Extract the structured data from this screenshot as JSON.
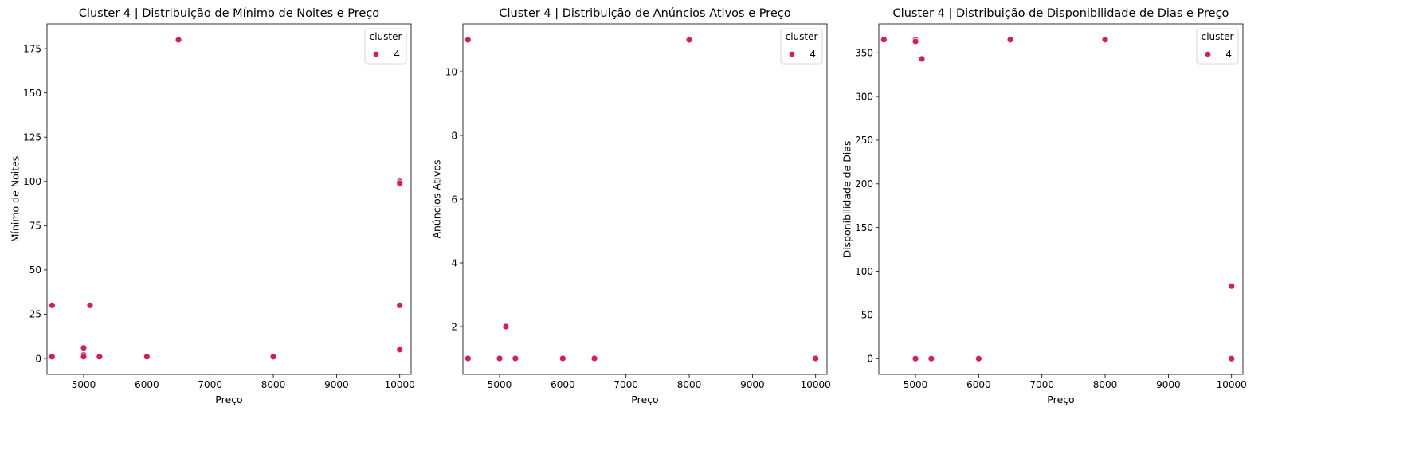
{
  "legend_title": "cluster",
  "legend_label": "4",
  "colors": {
    "cluster4": "#d81b60",
    "marker_edge": "#ffffff",
    "axes": "#000000"
  },
  "chart_data": [
    {
      "type": "scatter",
      "title": "Cluster 4 | Distribuição de Mínimo de Noites e Preço",
      "xlabel": "Preço",
      "ylabel": "Mínimo de Noites",
      "xlim": [
        4420,
        10180
      ],
      "ylim": [
        -9,
        189
      ],
      "xticks": [
        5000,
        6000,
        7000,
        8000,
        9000,
        10000
      ],
      "yticks": [
        0,
        25,
        50,
        75,
        100,
        125,
        150,
        175
      ],
      "legend": {
        "title": "cluster",
        "entries": [
          "4"
        ],
        "placement": "upper right"
      },
      "series": [
        {
          "name": "4",
          "x": [
            6500,
            10000,
            10000,
            4500,
            5100,
            10000,
            5000,
            10000,
            5000,
            5000,
            4500,
            5250,
            6000,
            8000
          ],
          "y": [
            180,
            100,
            99,
            30,
            30,
            30,
            6,
            5,
            2,
            1,
            1,
            1,
            1,
            1
          ]
        }
      ]
    },
    {
      "type": "scatter",
      "title": "Cluster 4 | Distribuição de Anúncios Ativos e Preço",
      "xlabel": "Preço",
      "ylabel": "Anúncios Ativos",
      "xlim": [
        4420,
        10180
      ],
      "ylim": [
        0.5,
        11.5
      ],
      "xticks": [
        5000,
        6000,
        7000,
        8000,
        9000,
        10000
      ],
      "yticks": [
        2,
        4,
        6,
        8,
        10
      ],
      "legend": {
        "title": "cluster",
        "entries": [
          "4"
        ],
        "placement": "upper right"
      },
      "series": [
        {
          "name": "4",
          "x": [
            4500,
            8000,
            5100,
            4500,
            5000,
            5250,
            6000,
            6500,
            10000
          ],
          "y": [
            11,
            11,
            2,
            1,
            1,
            1,
            1,
            1,
            1
          ]
        }
      ]
    },
    {
      "type": "scatter",
      "title": "Cluster 4 | Distribuição de Disponibilidade de Dias e Preço",
      "xlabel": "Preço",
      "ylabel": "Disponibilidade de Dias",
      "xlim": [
        4420,
        10180
      ],
      "ylim": [
        -18,
        383
      ],
      "xticks": [
        5000,
        6000,
        7000,
        8000,
        9000,
        10000
      ],
      "yticks": [
        0,
        50,
        100,
        150,
        200,
        250,
        300,
        350
      ],
      "legend": {
        "title": "cluster",
        "entries": [
          "4"
        ],
        "placement": "upper right"
      },
      "series": [
        {
          "name": "4",
          "x": [
            4500,
            5000,
            5000,
            5100,
            6500,
            8000,
            10000,
            5000,
            5250,
            6000,
            10000
          ],
          "y": [
            365,
            365,
            363,
            343,
            365,
            365,
            83,
            0,
            0,
            0,
            0
          ]
        }
      ]
    }
  ]
}
